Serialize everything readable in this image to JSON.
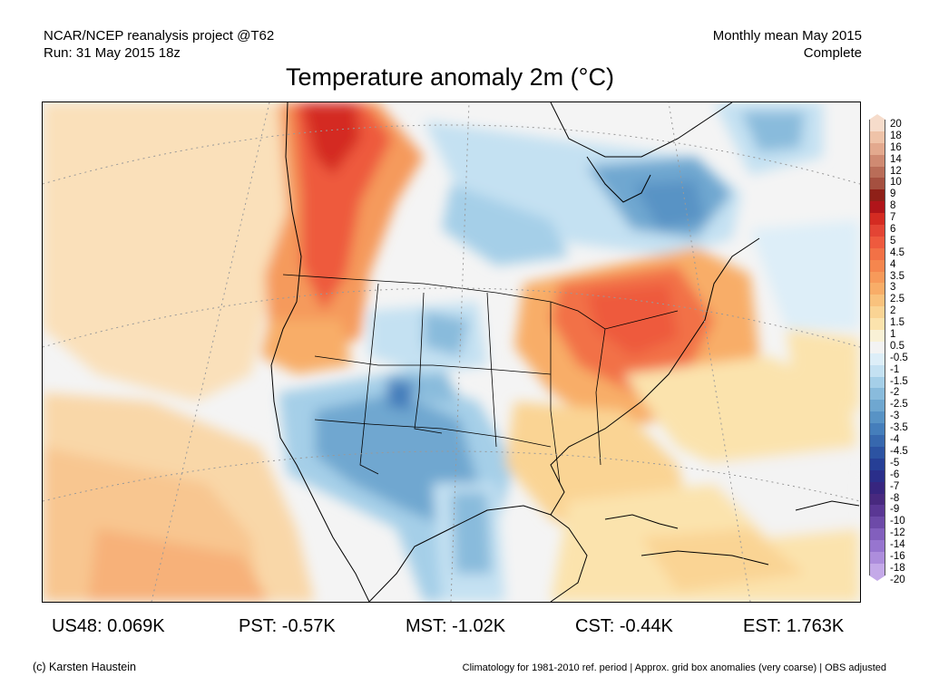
{
  "header": {
    "line1_left": "NCAR/NCEP reanalysis project @T62",
    "line2_left": "Run: 31 May 2015 18z",
    "line1_right": "Monthly mean May 2015",
    "line2_right": "Complete"
  },
  "title": "Temperature anomaly 2m (°C)",
  "colorbar": {
    "labels": [
      "20",
      "18",
      "16",
      "14",
      "12",
      "10",
      "9",
      "8",
      "7",
      "6",
      "5",
      "4.5",
      "4",
      "3.5",
      "3",
      "2.5",
      "2",
      "1.5",
      "1",
      "0.5",
      "-0.5",
      "-1",
      "-1.5",
      "-2",
      "-2.5",
      "-3",
      "-3.5",
      "-4",
      "-4.5",
      "-5",
      "-6",
      "-7",
      "-8",
      "-9",
      "-10",
      "-12",
      "-14",
      "-16",
      "-18",
      "-20"
    ],
    "colors": [
      "#f6dccb",
      "#efc3a8",
      "#e3a98e",
      "#cf8a72",
      "#b96d58",
      "#a55040",
      "#8f2018",
      "#b0151a",
      "#d42b22",
      "#e34434",
      "#ee5a3e",
      "#f27146",
      "#f5864e",
      "#f79a5a",
      "#f8ad68",
      "#f9c27d",
      "#fad494",
      "#fbe3ad",
      "#f9f1d6",
      "#f3f3f3",
      "#ddeef8",
      "#c4e1f2",
      "#a5cfe8",
      "#89bbdc",
      "#6fa7d0",
      "#5893c5",
      "#457ebb",
      "#3768ae",
      "#2c53a2",
      "#263f96",
      "#2a2e8a",
      "#37257f",
      "#48297f",
      "#5a3794",
      "#6d4aa8",
      "#825fbd",
      "#9775cf",
      "#ad8ddc",
      "#c4a9e8"
    ]
  },
  "stats": [
    {
      "label": "US48: 0.069K"
    },
    {
      "label": "PST: -0.57K"
    },
    {
      "label": "MST: -1.02K"
    },
    {
      "label": "CST: -0.44K"
    },
    {
      "label": "EST: 1.763K"
    }
  ],
  "footer": {
    "left": "(c) Karsten Haustein",
    "right": "Climatology for 1981-2010 ref. period | Approx. grid box anomalies (very coarse) | OBS adjusted"
  }
}
